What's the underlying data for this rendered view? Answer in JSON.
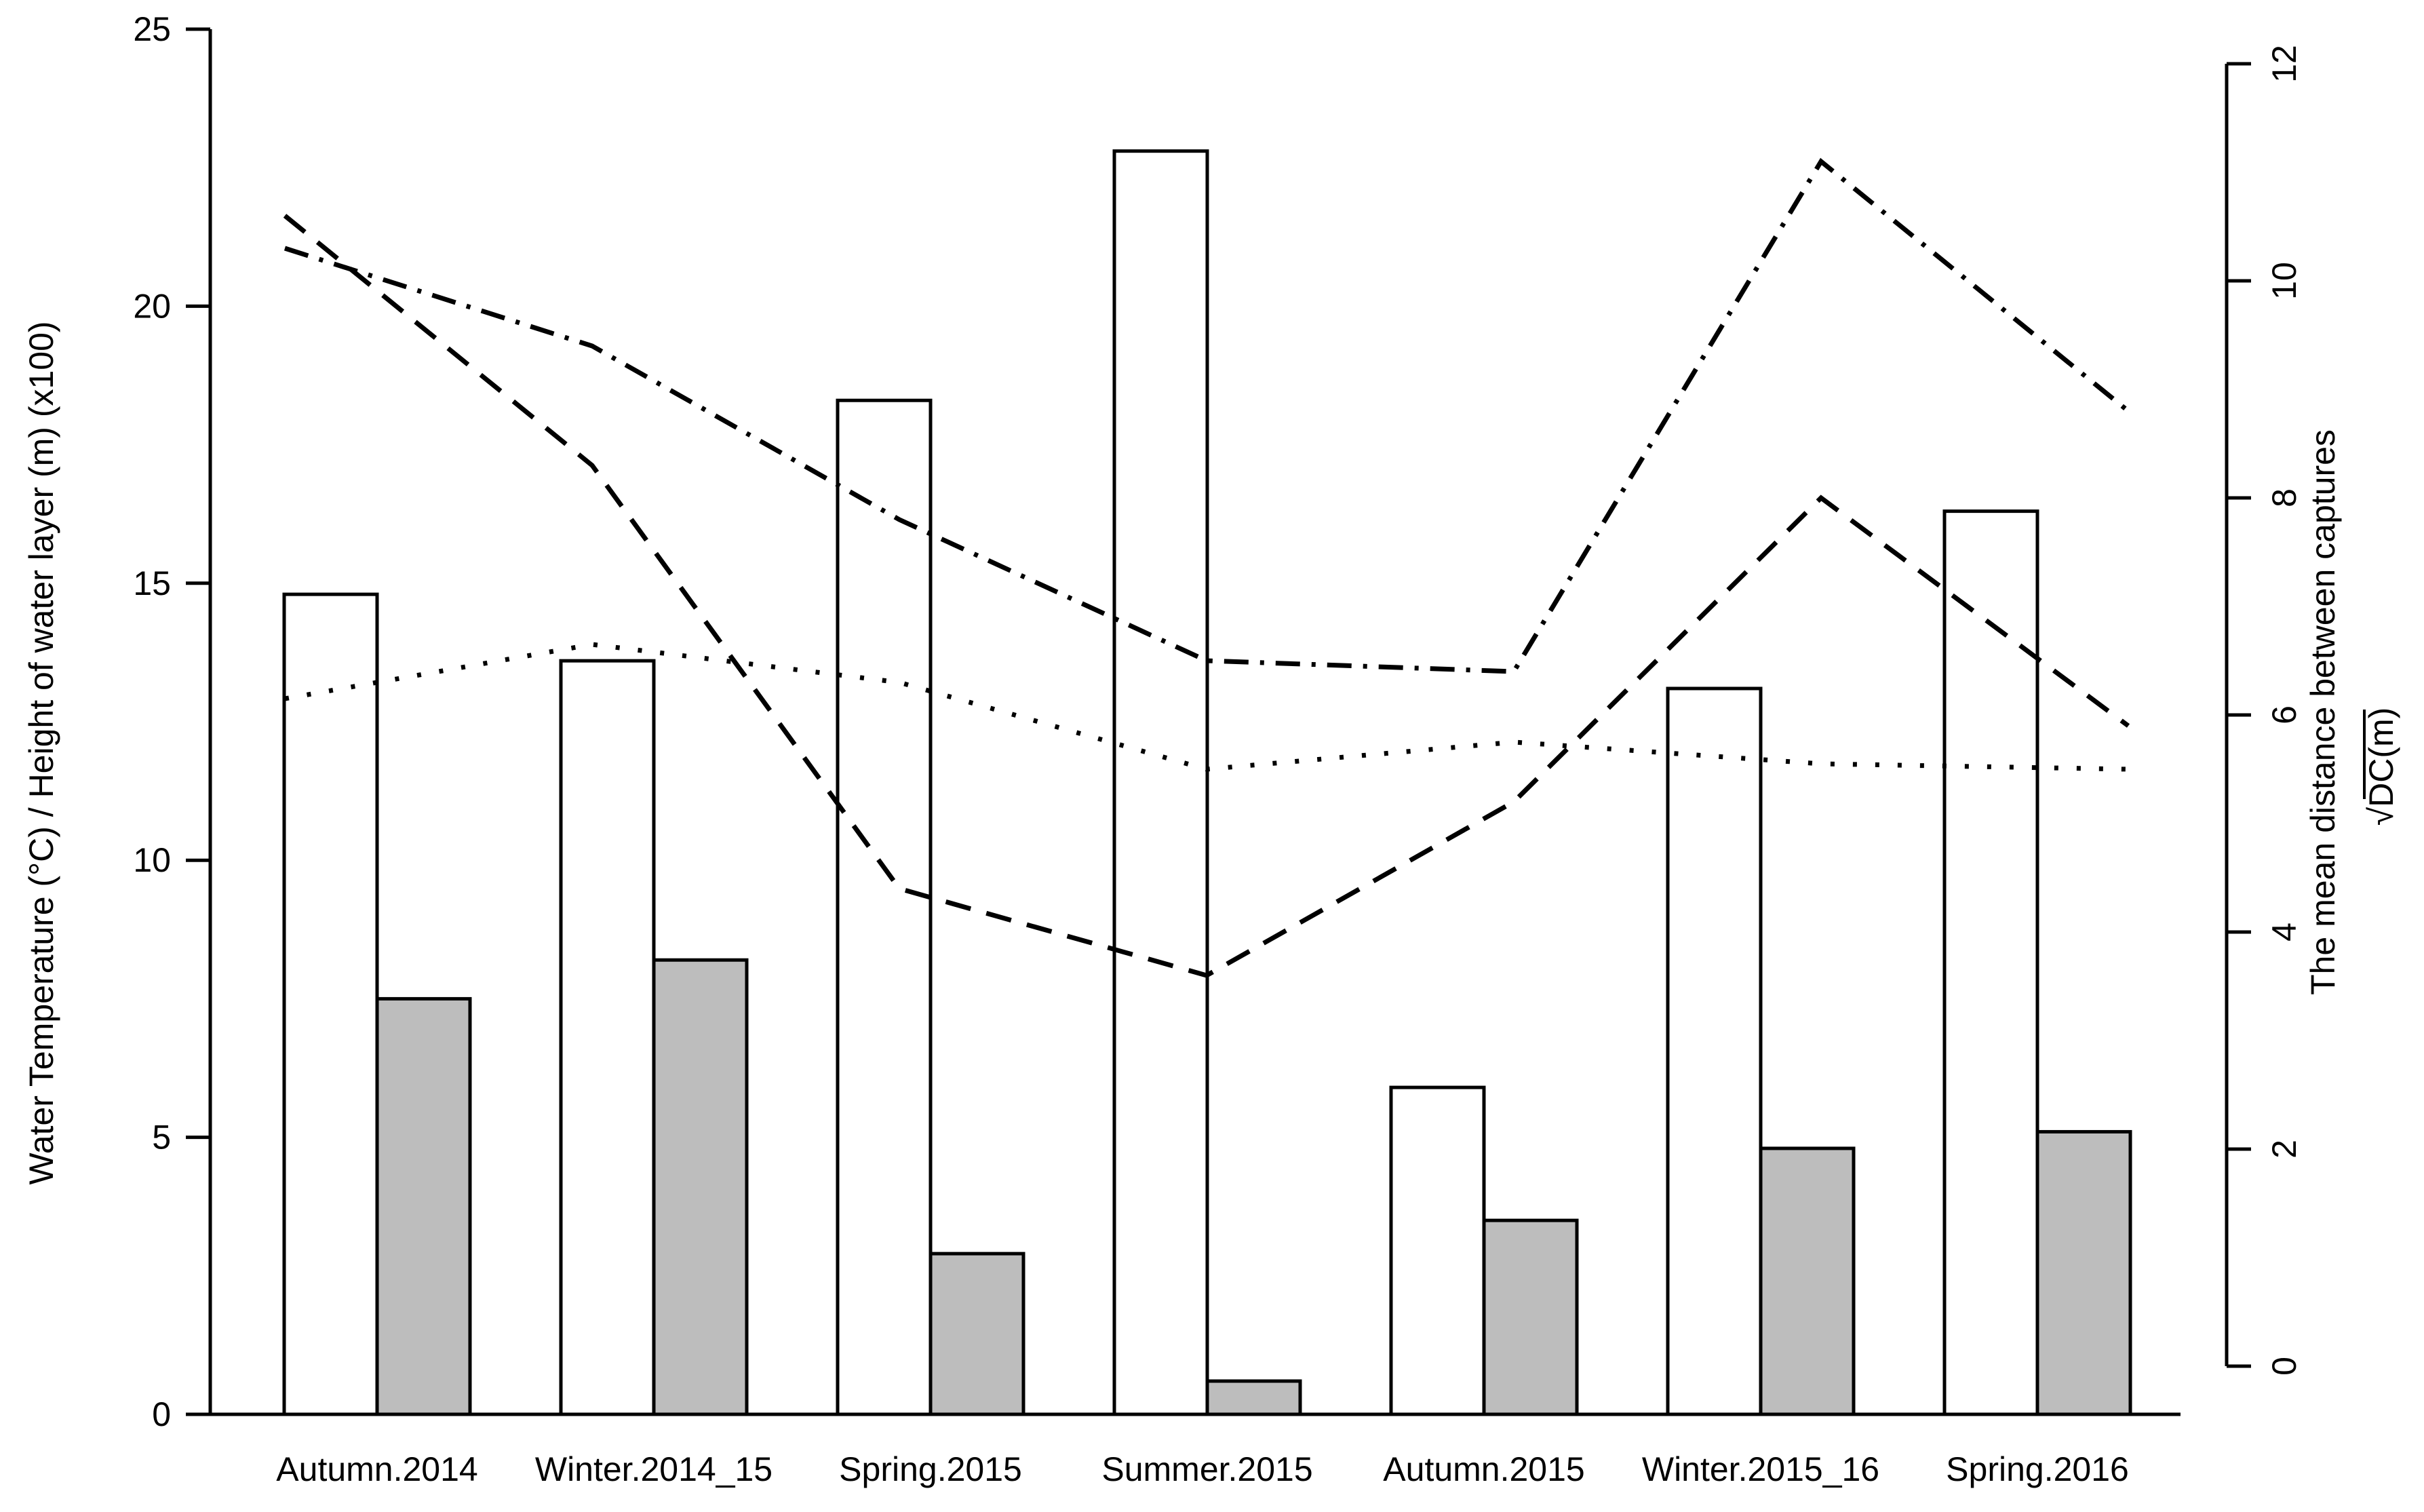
{
  "figure": {
    "background": "#ffffff",
    "ink_color": "#000000",
    "gray_bar_fill": "#bdbdbd",
    "white_bar_fill": "#ffffff"
  },
  "chart_data": {
    "type": "bar+line combo (dual axis, R base-graphics style)",
    "categories": [
      "Autumn.2014",
      "Winter.2014_15",
      "Spring.2015",
      "Summer.2015",
      "Autumn.2015",
      "Winter.2015_16",
      "Spring.2016"
    ],
    "left_axis": {
      "label": "Water Temperature (°C) / Height of water layer (m) (x100)",
      "ticks": [
        0,
        5,
        10,
        15,
        20,
        25
      ],
      "range": [
        0,
        25
      ]
    },
    "right_axis": {
      "label": "The mean distance between captures",
      "sqrt_prefix": "√",
      "sqrt_body": "DC(m)",
      "ticks": [
        0,
        2,
        4,
        6,
        8,
        10,
        12
      ],
      "range": [
        0,
        12
      ]
    },
    "x_axis": {
      "tick_labels_shown": true,
      "grid": false,
      "legend": "none"
    },
    "bar_series": [
      {
        "name": "white-bars",
        "axis": "left",
        "fill": "#ffffff",
        "values": [
          14.8,
          13.6,
          18.3,
          22.8,
          5.9,
          13.1,
          16.3
        ]
      },
      {
        "name": "gray-bars",
        "axis": "left",
        "fill": "#bdbdbd",
        "values": [
          7.5,
          8.2,
          2.9,
          0.6,
          3.5,
          4.8,
          5.1
        ]
      }
    ],
    "line_series": [
      {
        "name": "dashed-line",
        "style": "dashed",
        "axis": "right",
        "values": [
          10.6,
          8.3,
          4.4,
          3.6,
          5.2,
          8.0,
          5.9
        ]
      },
      {
        "name": "dashdot-line",
        "style": "dashdot",
        "axis": "right",
        "values": [
          10.3,
          9.4,
          7.8,
          6.5,
          6.4,
          11.1,
          8.8
        ]
      },
      {
        "name": "dotted-line",
        "style": "dotted",
        "axis": "right",
        "values": [
          6.15,
          6.65,
          6.3,
          5.5,
          5.75,
          5.55,
          5.5
        ]
      }
    ]
  }
}
